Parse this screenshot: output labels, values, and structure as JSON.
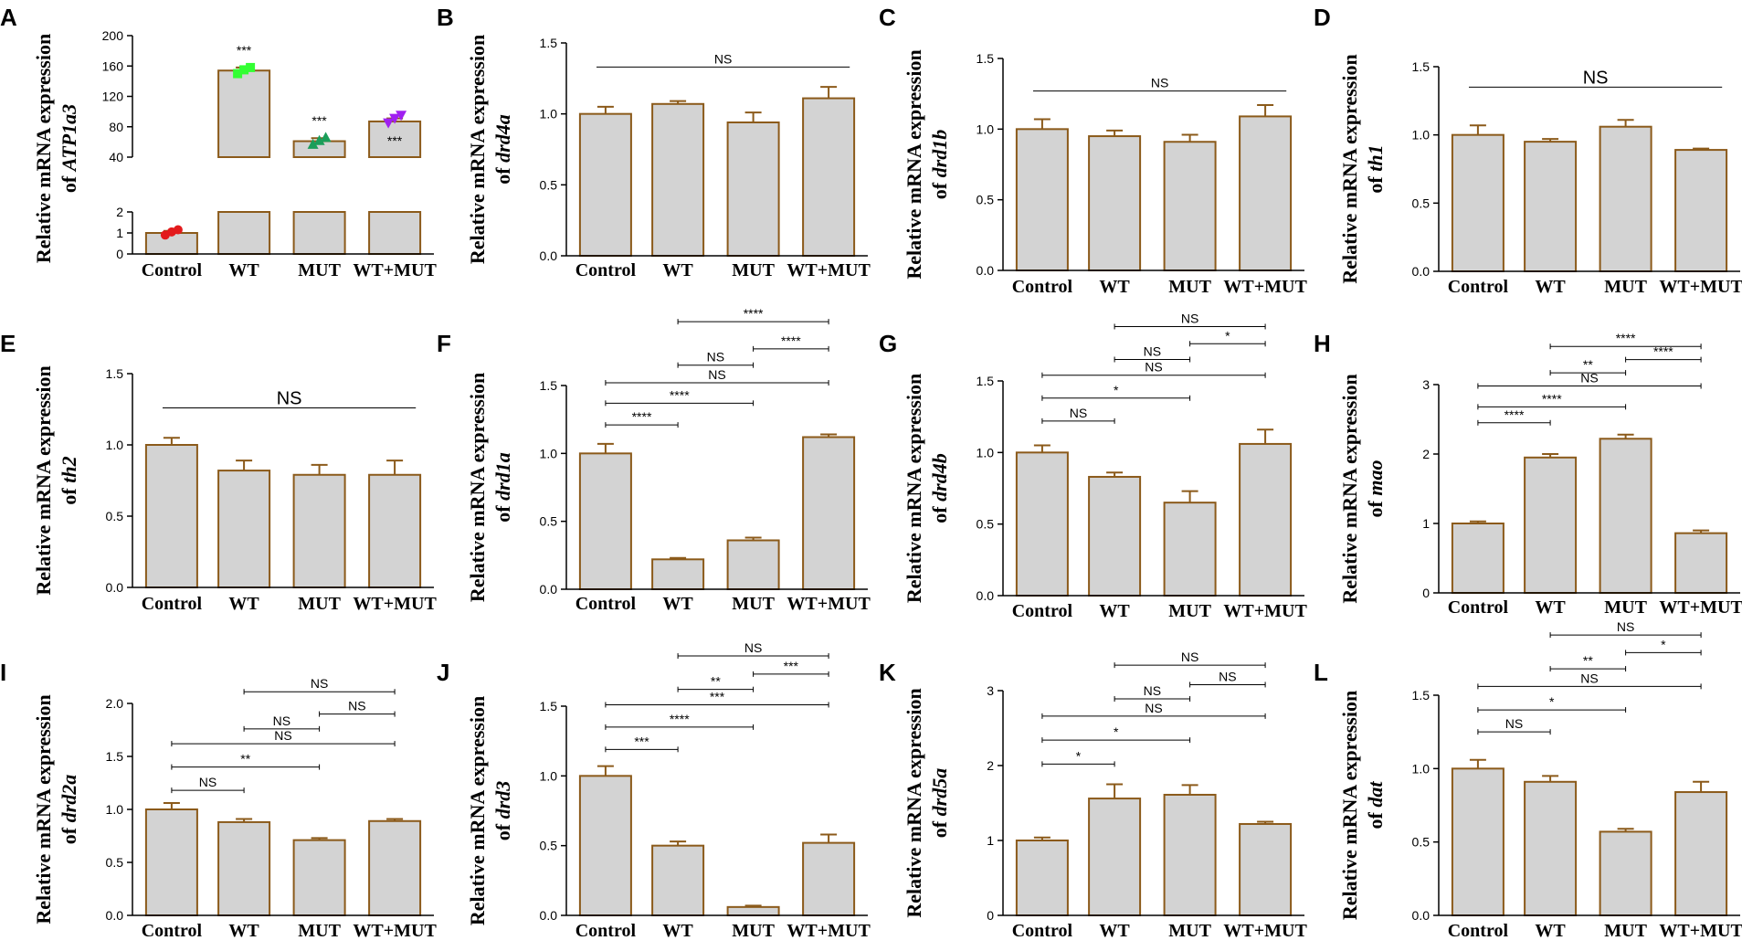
{
  "colors": {
    "bar_fill": "#d3d3d3",
    "bar_stroke": "#8b5a1a",
    "axis": "#000000"
  },
  "chart_data": [
    {
      "id": "A",
      "letter": "A",
      "type": "bar",
      "title": "",
      "ylabel_prefix": "Relative mRNA expression",
      "ylabel_of": "of ",
      "ylabel_gene": "ATP1a3",
      "categories": [
        "Control",
        "WT",
        "MUT",
        "WT+MUT"
      ],
      "values": [
        1.0,
        154,
        61,
        87
      ],
      "errors": [
        0.1,
        4,
        4,
        4
      ],
      "ylim": [
        0,
        200
      ],
      "broken_axis": {
        "lower_range": [
          0,
          2
        ],
        "upper_range": [
          40,
          200
        ]
      },
      "lower_ticks": [
        0,
        1,
        2
      ],
      "upper_ticks": [
        40,
        80,
        120,
        160,
        200
      ],
      "points": [
        {
          "category": "Control",
          "values": [
            0.9,
            1.05,
            1.15
          ],
          "color": "#e31a1c",
          "marker": "circle"
        },
        {
          "category": "WT",
          "values": [
            150,
            155,
            158
          ],
          "color": "#33ff33",
          "marker": "square"
        },
        {
          "category": "MUT",
          "values": [
            57,
            62,
            66
          ],
          "color": "#1a9e5a",
          "marker": "triangle-up"
        },
        {
          "category": "WT+MUT",
          "values": [
            85,
            91,
            95
          ],
          "color": "#a020f0",
          "marker": "triangle-down"
        }
      ],
      "annotations": [
        {
          "category": "WT",
          "text": "***"
        },
        {
          "category": "MUT",
          "text": "***"
        },
        {
          "category": "WT+MUT",
          "text": "***"
        }
      ]
    },
    {
      "id": "B",
      "letter": "B",
      "type": "bar",
      "ylabel_prefix": "Relative mRNA expression",
      "ylabel_of": "of ",
      "ylabel_gene": "drd4a",
      "categories": [
        "Control",
        "WT",
        "MUT",
        "WT+MUT"
      ],
      "values": [
        1.0,
        1.07,
        0.94,
        1.11
      ],
      "errors": [
        0.05,
        0.02,
        0.07,
        0.08
      ],
      "ylim": [
        0,
        1.5
      ],
      "yticks": [
        0,
        0.5,
        1.0,
        1.5
      ],
      "comparisons": [
        {
          "from": 0,
          "to": 3,
          "label": "NS",
          "y": 1.33,
          "single": true
        }
      ]
    },
    {
      "id": "C",
      "letter": "C",
      "type": "bar",
      "ylabel_prefix": "Relative mRNA expression",
      "ylabel_of": "of ",
      "ylabel_gene": "drd1b",
      "categories": [
        "Control",
        "WT",
        "MUT",
        "WT+MUT"
      ],
      "values": [
        1.0,
        0.95,
        0.91,
        1.09
      ],
      "errors": [
        0.07,
        0.04,
        0.05,
        0.08
      ],
      "ylim": [
        0,
        1.5
      ],
      "yticks": [
        0,
        0.5,
        1.0,
        1.5
      ],
      "comparisons": [
        {
          "from": 0,
          "to": 3,
          "label": "NS",
          "y": 1.27,
          "single": true
        }
      ]
    },
    {
      "id": "D",
      "letter": "D",
      "type": "bar",
      "ylabel_prefix": "Relative mRNA expression",
      "ylabel_of": "of ",
      "ylabel_gene": "th1",
      "categories": [
        "Control",
        "WT",
        "MUT",
        "WT+MUT"
      ],
      "values": [
        1.0,
        0.95,
        1.06,
        0.89
      ],
      "errors": [
        0.07,
        0.02,
        0.05,
        0.01
      ],
      "ylim": [
        0,
        1.5
      ],
      "yticks": [
        0,
        0.5,
        1.0,
        1.5
      ],
      "comparisons": [
        {
          "from": 0,
          "to": 3,
          "label": "NS",
          "y": 1.35,
          "single": true,
          "large": true
        }
      ]
    },
    {
      "id": "E",
      "letter": "E",
      "type": "bar",
      "ylabel_prefix": "Relative mRNA expression",
      "ylabel_of": "of ",
      "ylabel_gene": "th2",
      "categories": [
        "Control",
        "WT",
        "MUT",
        "WT+MUT"
      ],
      "values": [
        1.0,
        0.82,
        0.79,
        0.79
      ],
      "errors": [
        0.05,
        0.07,
        0.07,
        0.1
      ],
      "ylim": [
        0,
        1.5
      ],
      "yticks": [
        0,
        0.5,
        1.0,
        1.5
      ],
      "comparisons": [
        {
          "from": 0,
          "to": 3,
          "label": "NS",
          "y": 1.26,
          "single": true,
          "large": true
        }
      ]
    },
    {
      "id": "F",
      "letter": "F",
      "type": "bar",
      "ylabel_prefix": "Relative mRNA expression",
      "ylabel_of": "of ",
      "ylabel_gene": "drd1a",
      "categories": [
        "Control",
        "WT",
        "MUT",
        "WT+MUT"
      ],
      "values": [
        1.0,
        0.22,
        0.36,
        1.12
      ],
      "errors": [
        0.07,
        0.01,
        0.02,
        0.02
      ],
      "ylim": [
        0,
        1.5
      ],
      "yticks": [
        0,
        0.5,
        1.0,
        1.5
      ],
      "comparisons": [
        {
          "from": 0,
          "to": 1,
          "label": "****",
          "y": 1.21
        },
        {
          "from": 0,
          "to": 2,
          "label": "****",
          "y": 1.37
        },
        {
          "from": 0,
          "to": 3,
          "label": "NS",
          "y": 1.52
        },
        {
          "from": 1,
          "to": 2,
          "label": "NS",
          "y": 1.65
        },
        {
          "from": 2,
          "to": 3,
          "label": "****",
          "y": 1.77
        },
        {
          "from": 1,
          "to": 3,
          "label": "****",
          "y": 1.97
        }
      ]
    },
    {
      "id": "G",
      "letter": "G",
      "type": "bar",
      "ylabel_prefix": "Relative mRNA expression",
      "ylabel_of": "of ",
      "ylabel_gene": "drd4b",
      "categories": [
        "Control",
        "WT",
        "MUT",
        "WT+MUT"
      ],
      "values": [
        1.0,
        0.83,
        0.65,
        1.06
      ],
      "errors": [
        0.05,
        0.03,
        0.08,
        0.1
      ],
      "ylim": [
        0,
        1.5
      ],
      "yticks": [
        0,
        0.5,
        1.0,
        1.5
      ],
      "comparisons": [
        {
          "from": 0,
          "to": 1,
          "label": "NS",
          "y": 1.22
        },
        {
          "from": 0,
          "to": 2,
          "label": "*",
          "y": 1.38
        },
        {
          "from": 0,
          "to": 3,
          "label": "NS",
          "y": 1.54
        },
        {
          "from": 1,
          "to": 2,
          "label": "NS",
          "y": 1.65
        },
        {
          "from": 2,
          "to": 3,
          "label": "*",
          "y": 1.76
        },
        {
          "from": 1,
          "to": 3,
          "label": "NS",
          "y": 1.88
        }
      ]
    },
    {
      "id": "H",
      "letter": "H",
      "type": "bar",
      "ylabel_prefix": "Relative mRNA expression",
      "ylabel_of": "of ",
      "ylabel_gene": "mao",
      "categories": [
        "Control",
        "WT",
        "MUT",
        "WT+MUT"
      ],
      "values": [
        1.0,
        1.95,
        2.22,
        0.86
      ],
      "errors": [
        0.03,
        0.05,
        0.06,
        0.04
      ],
      "ylim": [
        0,
        3
      ],
      "yticks": [
        0,
        1,
        2,
        3
      ],
      "comparisons": [
        {
          "from": 0,
          "to": 1,
          "label": "****",
          "y": 2.45
        },
        {
          "from": 0,
          "to": 2,
          "label": "****",
          "y": 2.68
        },
        {
          "from": 0,
          "to": 3,
          "label": "NS",
          "y": 2.98
        },
        {
          "from": 1,
          "to": 2,
          "label": "**",
          "y": 3.17
        },
        {
          "from": 2,
          "to": 3,
          "label": "****",
          "y": 3.36
        },
        {
          "from": 1,
          "to": 3,
          "label": "****",
          "y": 3.55
        }
      ]
    },
    {
      "id": "I",
      "letter": "I",
      "type": "bar",
      "ylabel_prefix": "Relative mRNA expression",
      "ylabel_of": "of ",
      "ylabel_gene": "drd2a",
      "categories": [
        "Control",
        "WT",
        "MUT",
        "WT+MUT"
      ],
      "values": [
        1.0,
        0.88,
        0.71,
        0.89
      ],
      "errors": [
        0.06,
        0.03,
        0.02,
        0.02
      ],
      "ylim": [
        0,
        2.0
      ],
      "yticks": [
        0,
        0.5,
        1.0,
        1.5,
        2.0
      ],
      "comparisons": [
        {
          "from": 0,
          "to": 1,
          "label": "NS",
          "y": 1.18
        },
        {
          "from": 0,
          "to": 2,
          "label": "**",
          "y": 1.4
        },
        {
          "from": 0,
          "to": 3,
          "label": "NS",
          "y": 1.62
        },
        {
          "from": 1,
          "to": 2,
          "label": "NS",
          "y": 1.76
        },
        {
          "from": 2,
          "to": 3,
          "label": "NS",
          "y": 1.9
        },
        {
          "from": 1,
          "to": 3,
          "label": "NS",
          "y": 2.11
        }
      ]
    },
    {
      "id": "J",
      "letter": "J",
      "type": "bar",
      "ylabel_prefix": "Relative mRNA expression",
      "ylabel_of": "of ",
      "ylabel_gene": "drd3",
      "categories": [
        "Control",
        "WT",
        "MUT",
        "WT+MUT"
      ],
      "values": [
        1.0,
        0.5,
        0.06,
        0.52
      ],
      "errors": [
        0.07,
        0.03,
        0.01,
        0.06
      ],
      "ylim": [
        0,
        1.5
      ],
      "yticks": [
        0,
        0.5,
        1.0,
        1.5
      ],
      "comparisons": [
        {
          "from": 0,
          "to": 1,
          "label": "***",
          "y": 1.19
        },
        {
          "from": 0,
          "to": 2,
          "label": "****",
          "y": 1.35
        },
        {
          "from": 0,
          "to": 3,
          "label": "***",
          "y": 1.51
        },
        {
          "from": 1,
          "to": 2,
          "label": "**",
          "y": 1.62
        },
        {
          "from": 2,
          "to": 3,
          "label": "***",
          "y": 1.73
        },
        {
          "from": 1,
          "to": 3,
          "label": "NS",
          "y": 1.86
        }
      ]
    },
    {
      "id": "K",
      "letter": "K",
      "type": "bar",
      "ylabel_prefix": "Relative mRNA expression",
      "ylabel_of": "of ",
      "ylabel_gene": "drd5a",
      "categories": [
        "Control",
        "WT",
        "MUT",
        "WT+MUT"
      ],
      "values": [
        1.0,
        1.56,
        1.61,
        1.22
      ],
      "errors": [
        0.04,
        0.19,
        0.13,
        0.03
      ],
      "ylim": [
        0,
        3
      ],
      "yticks": [
        0,
        1,
        2,
        3
      ],
      "comparisons": [
        {
          "from": 0,
          "to": 1,
          "label": "*",
          "y": 2.02
        },
        {
          "from": 0,
          "to": 2,
          "label": "*",
          "y": 2.34
        },
        {
          "from": 0,
          "to": 3,
          "label": "NS",
          "y": 2.66
        },
        {
          "from": 1,
          "to": 2,
          "label": "NS",
          "y": 2.89
        },
        {
          "from": 2,
          "to": 3,
          "label": "NS",
          "y": 3.08
        },
        {
          "from": 1,
          "to": 3,
          "label": "NS",
          "y": 3.34
        }
      ]
    },
    {
      "id": "L",
      "letter": "L",
      "type": "bar",
      "ylabel_prefix": "Relative mRNA expression",
      "ylabel_of": "of ",
      "ylabel_gene": "dat",
      "categories": [
        "Control",
        "WT",
        "MUT",
        "WT+MUT"
      ],
      "values": [
        1.0,
        0.91,
        0.57,
        0.84
      ],
      "errors": [
        0.06,
        0.04,
        0.02,
        0.07
      ],
      "ylim": [
        0,
        1.5
      ],
      "yticks": [
        0,
        0.5,
        1.0,
        1.5
      ],
      "comparisons": [
        {
          "from": 0,
          "to": 1,
          "label": "NS",
          "y": 1.25
        },
        {
          "from": 0,
          "to": 2,
          "label": "*",
          "y": 1.4
        },
        {
          "from": 0,
          "to": 3,
          "label": "NS",
          "y": 1.56
        },
        {
          "from": 1,
          "to": 2,
          "label": "**",
          "y": 1.68
        },
        {
          "from": 2,
          "to": 3,
          "label": "*",
          "y": 1.79
        },
        {
          "from": 1,
          "to": 3,
          "label": "NS",
          "y": 1.91
        }
      ]
    }
  ]
}
